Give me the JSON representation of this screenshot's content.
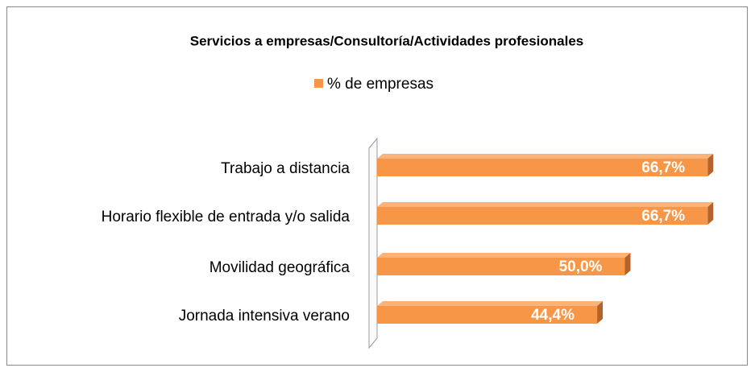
{
  "chart_data": {
    "type": "hbar",
    "title": "Servicios a empresas/Consultoría/Actividades  profesionales",
    "categories": [
      "Trabajo a distancia",
      "Horario flexible de entrada y/o salida",
      "Movilidad geográfica",
      "Jornada intensiva verano"
    ],
    "series": [
      {
        "name": "% de empresas",
        "color": "#f79646",
        "values": [
          66.7,
          66.7,
          50.0,
          44.4
        ],
        "value_labels": [
          "66,7%",
          "66,7%",
          "50,0%",
          "44,4%"
        ]
      }
    ]
  }
}
